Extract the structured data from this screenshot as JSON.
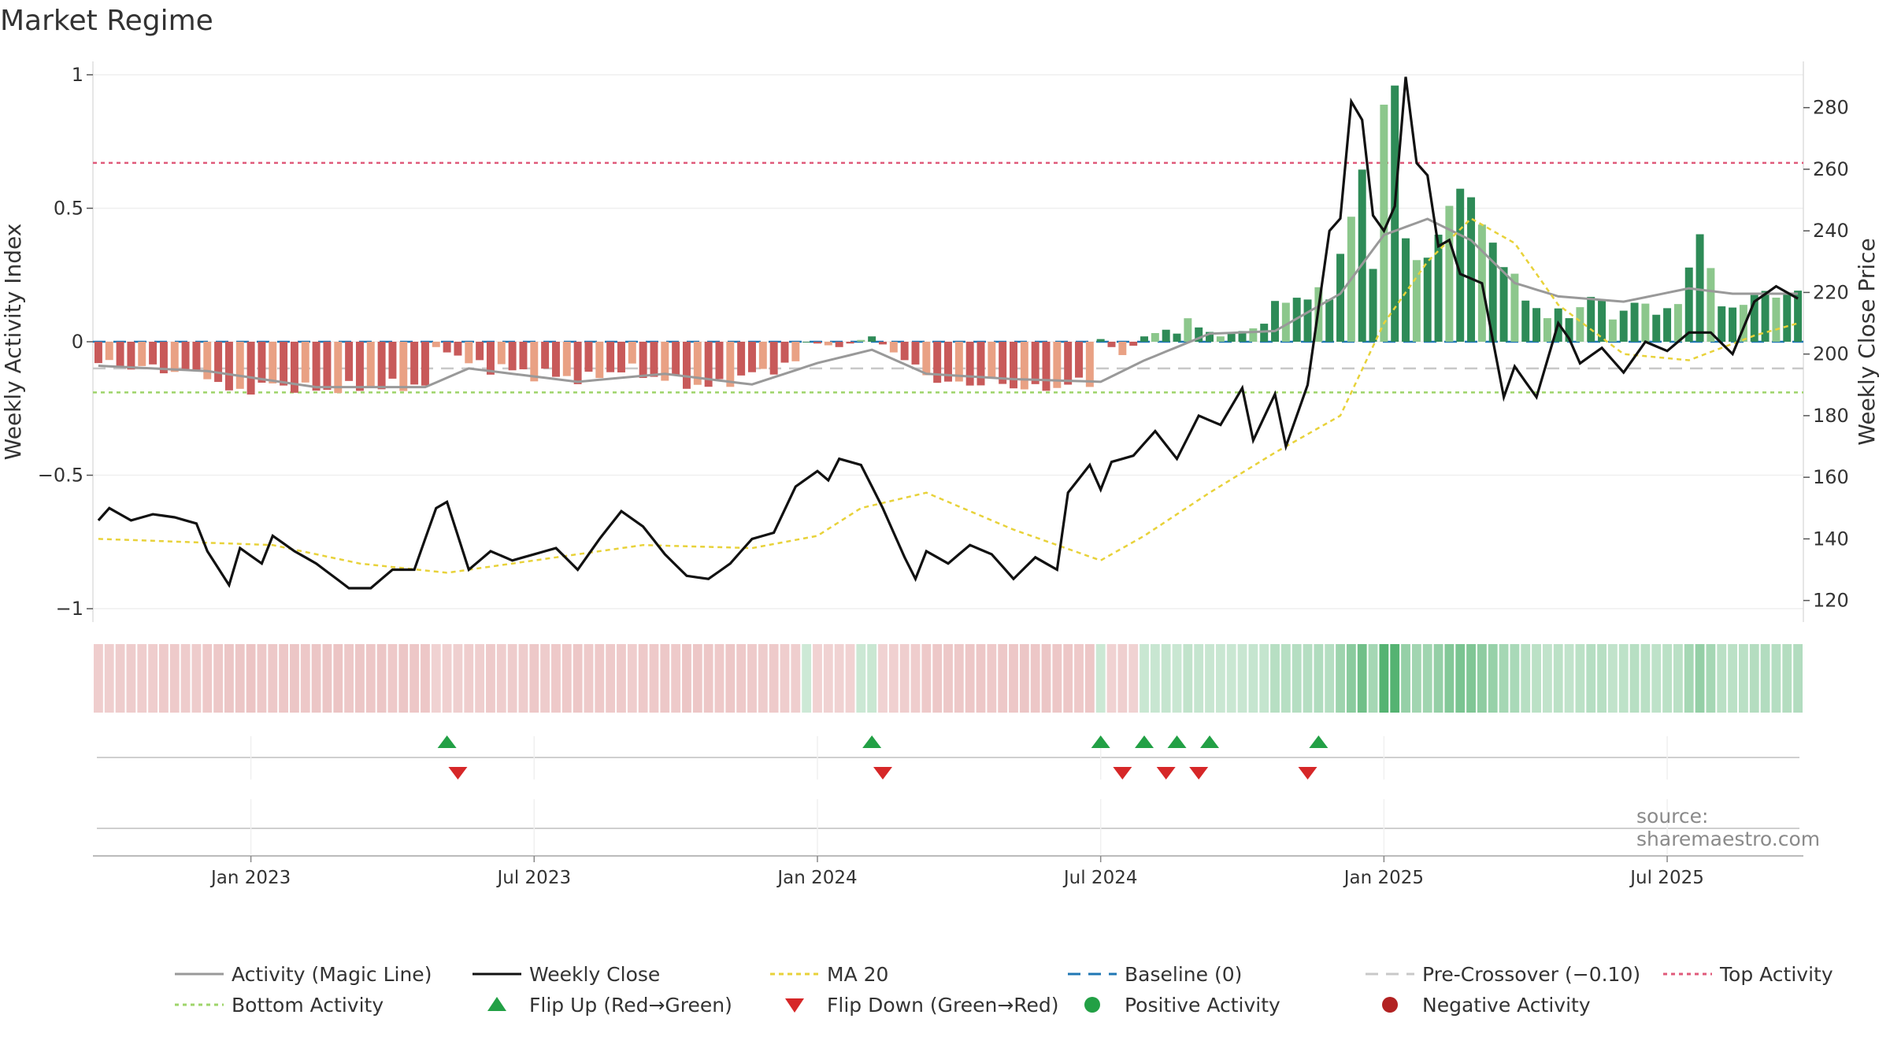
{
  "title": "Market Regime",
  "source": "source: sharemaestro.com",
  "colors": {
    "pos_strong": "#2e8b57",
    "pos_light": "#8cc78c",
    "neg_strong": "#c85a5a",
    "neg_light": "#e9a184",
    "close": "#111111",
    "ma20": "#e8d23a",
    "magic": "#999999",
    "baseline": "#1f77b4",
    "pre_cross": "#c8c8c8",
    "top": "#e05a7a",
    "bottom": "#9ed46a",
    "flip_up": "#22a045",
    "flip_down": "#d62728",
    "pos_dot": "#22a045",
    "neg_dot": "#b22222"
  },
  "chart_data": {
    "type": "bar",
    "left_axis": {
      "label": "Weekly Activity Index",
      "ticks": [
        1,
        0.5,
        0,
        -0.5,
        -1
      ],
      "tick_labels": [
        "1",
        "0.5",
        "0",
        "−0.5",
        "−1"
      ],
      "range": [
        -1.05,
        1.05
      ]
    },
    "right_axis": {
      "label": "Weekly Close Price",
      "ticks": [
        120,
        140,
        160,
        180,
        200,
        220,
        240,
        260,
        280
      ],
      "range": [
        113,
        295
      ]
    },
    "x_axis": {
      "ticks": [
        "Jan 2023",
        "Jul 2023",
        "Jan 2024",
        "Jul 2024",
        "Jan 2025",
        "Jul 2025"
      ],
      "tick_weeks": [
        14,
        40,
        66,
        92,
        118,
        144
      ]
    },
    "weeks": 157,
    "reference_lines": {
      "top_activity": 0.67,
      "bottom_activity": -0.19,
      "pre_crossover": -0.1,
      "baseline": 0
    },
    "activity_anchors": [
      [
        0,
        -0.08
      ],
      [
        5,
        -0.1
      ],
      [
        10,
        -0.12
      ],
      [
        12,
        -0.19
      ],
      [
        16,
        -0.16
      ],
      [
        20,
        -0.18
      ],
      [
        25,
        -0.17
      ],
      [
        30,
        -0.16
      ],
      [
        31,
        -0.02
      ],
      [
        34,
        -0.08
      ],
      [
        40,
        -0.12
      ],
      [
        45,
        -0.14
      ],
      [
        48,
        -0.1
      ],
      [
        52,
        -0.14
      ],
      [
        56,
        -0.17
      ],
      [
        60,
        -0.12
      ],
      [
        64,
        -0.08
      ],
      [
        65,
        0.0
      ],
      [
        68,
        -0.02
      ],
      [
        71,
        0.02
      ],
      [
        72,
        -0.01
      ],
      [
        75,
        -0.1
      ],
      [
        78,
        -0.16
      ],
      [
        82,
        -0.15
      ],
      [
        86,
        -0.18
      ],
      [
        89,
        -0.16
      ],
      [
        91,
        -0.15
      ],
      [
        92,
        0.01
      ],
      [
        94,
        -0.05
      ],
      [
        96,
        0.02
      ],
      [
        100,
        0.07
      ],
      [
        103,
        0.02
      ],
      [
        106,
        0.05
      ],
      [
        109,
        0.16
      ],
      [
        113,
        0.18
      ],
      [
        116,
        0.62
      ],
      [
        117,
        0.3
      ],
      [
        118,
        0.88
      ],
      [
        119,
        0.96
      ],
      [
        120,
        0.37
      ],
      [
        122,
        0.3
      ],
      [
        124,
        0.5
      ],
      [
        125,
        0.6
      ],
      [
        127,
        0.44
      ],
      [
        129,
        0.3
      ],
      [
        131,
        0.16
      ],
      [
        133,
        0.1
      ],
      [
        135,
        0.1
      ],
      [
        137,
        0.17
      ],
      [
        139,
        0.1
      ],
      [
        141,
        0.14
      ],
      [
        143,
        0.12
      ],
      [
        145,
        0.13
      ],
      [
        147,
        0.42
      ],
      [
        149,
        0.12
      ],
      [
        151,
        0.15
      ],
      [
        153,
        0.18
      ],
      [
        156,
        0.18
      ]
    ],
    "close_anchors": [
      [
        0,
        146
      ],
      [
        1,
        150
      ],
      [
        3,
        146
      ],
      [
        5,
        148
      ],
      [
        7,
        147
      ],
      [
        9,
        145
      ],
      [
        10,
        136
      ],
      [
        12,
        125
      ],
      [
        13,
        137
      ],
      [
        15,
        132
      ],
      [
        16,
        141
      ],
      [
        18,
        136
      ],
      [
        20,
        132
      ],
      [
        23,
        124
      ],
      [
        25,
        124
      ],
      [
        27,
        130
      ],
      [
        29,
        130
      ],
      [
        31,
        150
      ],
      [
        32,
        152
      ],
      [
        34,
        130
      ],
      [
        36,
        136
      ],
      [
        38,
        133
      ],
      [
        40,
        135
      ],
      [
        42,
        137
      ],
      [
        44,
        130
      ],
      [
        46,
        140
      ],
      [
        48,
        149
      ],
      [
        50,
        144
      ],
      [
        52,
        135
      ],
      [
        54,
        128
      ],
      [
        56,
        127
      ],
      [
        58,
        132
      ],
      [
        60,
        140
      ],
      [
        62,
        142
      ],
      [
        64,
        157
      ],
      [
        66,
        162
      ],
      [
        67,
        159
      ],
      [
        68,
        166
      ],
      [
        70,
        164
      ],
      [
        72,
        150
      ],
      [
        74,
        134
      ],
      [
        75,
        127
      ],
      [
        76,
        136
      ],
      [
        78,
        132
      ],
      [
        80,
        138
      ],
      [
        82,
        135
      ],
      [
        84,
        127
      ],
      [
        86,
        134
      ],
      [
        88,
        130
      ],
      [
        89,
        155
      ],
      [
        91,
        164
      ],
      [
        92,
        156
      ],
      [
        93,
        165
      ],
      [
        95,
        167
      ],
      [
        97,
        175
      ],
      [
        99,
        166
      ],
      [
        101,
        180
      ],
      [
        103,
        177
      ],
      [
        105,
        189
      ],
      [
        106,
        172
      ],
      [
        108,
        187
      ],
      [
        109,
        170
      ],
      [
        111,
        190
      ],
      [
        113,
        240
      ],
      [
        114,
        244
      ],
      [
        115,
        282
      ],
      [
        116,
        276
      ],
      [
        117,
        245
      ],
      [
        118,
        240
      ],
      [
        119,
        248
      ],
      [
        120,
        290
      ],
      [
        121,
        262
      ],
      [
        122,
        258
      ],
      [
        123,
        235
      ],
      [
        124,
        237
      ],
      [
        125,
        226
      ],
      [
        127,
        223
      ],
      [
        129,
        186
      ],
      [
        130,
        196
      ],
      [
        132,
        186
      ],
      [
        134,
        210
      ],
      [
        135,
        205
      ],
      [
        136,
        197
      ],
      [
        138,
        202
      ],
      [
        140,
        194
      ],
      [
        142,
        204
      ],
      [
        144,
        201
      ],
      [
        146,
        207
      ],
      [
        148,
        207
      ],
      [
        150,
        200
      ],
      [
        152,
        217
      ],
      [
        154,
        222
      ],
      [
        156,
        218
      ]
    ],
    "ma20_anchors": [
      [
        0,
        140
      ],
      [
        16,
        138
      ],
      [
        24,
        132
      ],
      [
        32,
        129
      ],
      [
        42,
        134
      ],
      [
        50,
        138
      ],
      [
        60,
        137
      ],
      [
        66,
        141
      ],
      [
        70,
        150
      ],
      [
        76,
        155
      ],
      [
        84,
        143
      ],
      [
        92,
        133
      ],
      [
        96,
        141
      ],
      [
        102,
        155
      ],
      [
        108,
        168
      ],
      [
        114,
        180
      ],
      [
        118,
        210
      ],
      [
        122,
        230
      ],
      [
        126,
        244
      ],
      [
        130,
        236
      ],
      [
        134,
        216
      ],
      [
        140,
        200
      ],
      [
        146,
        198
      ],
      [
        152,
        206
      ],
      [
        156,
        210
      ]
    ],
    "magic_anchors": [
      [
        0,
        -0.09
      ],
      [
        10,
        -0.11
      ],
      [
        20,
        -0.17
      ],
      [
        30,
        -0.17
      ],
      [
        34,
        -0.1
      ],
      [
        44,
        -0.15
      ],
      [
        52,
        -0.12
      ],
      [
        60,
        -0.16
      ],
      [
        66,
        -0.08
      ],
      [
        71,
        -0.03
      ],
      [
        76,
        -0.12
      ],
      [
        84,
        -0.14
      ],
      [
        92,
        -0.15
      ],
      [
        96,
        -0.07
      ],
      [
        102,
        0.03
      ],
      [
        108,
        0.04
      ],
      [
        114,
        0.18
      ],
      [
        118,
        0.4
      ],
      [
        122,
        0.46
      ],
      [
        126,
        0.38
      ],
      [
        130,
        0.22
      ],
      [
        134,
        0.17
      ],
      [
        140,
        0.15
      ],
      [
        146,
        0.2
      ],
      [
        150,
        0.18
      ],
      [
        156,
        0.18
      ]
    ],
    "regime_strip": {
      "description_weeks": "per-week regime shading",
      "positive_weeks_start": [
        32,
        71,
        92,
        95,
        96,
        97,
        98,
        101
      ],
      "flip_up_weeks": [
        32,
        71,
        92,
        96,
        99,
        102,
        112
      ],
      "flip_down_weeks": [
        33,
        72,
        94,
        98,
        101,
        111
      ]
    },
    "legend": [
      {
        "label": "Activity (Magic Line)",
        "type": "line",
        "color_key": "magic",
        "dash": ""
      },
      {
        "label": "Weekly Close",
        "type": "line",
        "color_key": "close",
        "dash": ""
      },
      {
        "label": "MA 20",
        "type": "line",
        "color_key": "ma20",
        "dash": "6,5"
      },
      {
        "label": "Baseline (0)",
        "type": "line",
        "color_key": "baseline",
        "dash": "16,10"
      },
      {
        "label": "Pre-Crossover (−0.10)",
        "type": "line",
        "color_key": "pre_cross",
        "dash": "16,10"
      },
      {
        "label": "Top Activity",
        "type": "line",
        "color_key": "top",
        "dash": "5,5"
      },
      {
        "label": "Bottom Activity",
        "type": "line",
        "color_key": "bottom",
        "dash": "5,5"
      },
      {
        "label": "Flip Up (Red→Green)",
        "type": "tri-up",
        "color_key": "flip_up"
      },
      {
        "label": "Flip Down (Green→Red)",
        "type": "tri-down",
        "color_key": "flip_down"
      },
      {
        "label": "Positive Activity",
        "type": "dot",
        "color_key": "pos_dot"
      },
      {
        "label": "Negative Activity",
        "type": "dot",
        "color_key": "neg_dot"
      }
    ]
  }
}
